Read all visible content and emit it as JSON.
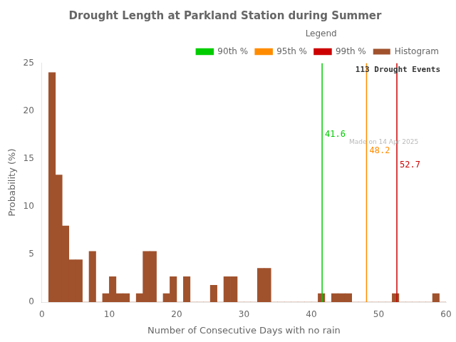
{
  "chart_data": {
    "type": "histogram",
    "title": "Drought Length at Parkland Station during Summer",
    "xlabel": "Number of Consecutive Days with no rain",
    "ylabel": "Probability (%)",
    "bins": [
      1,
      2,
      3,
      4,
      5,
      6,
      7,
      8,
      9,
      10,
      11,
      12,
      13,
      14,
      15,
      16,
      17,
      18,
      19,
      20,
      21,
      22,
      23,
      24,
      25,
      26,
      27,
      28,
      29,
      30,
      31,
      32,
      33,
      34,
      35,
      36,
      37,
      38,
      39,
      40,
      41,
      42,
      43,
      44,
      45,
      46,
      47,
      48,
      49,
      50,
      51,
      52,
      53,
      54,
      55,
      56,
      57,
      58,
      59,
      60,
      61
    ],
    "series": [
      {
        "name": "Histogram",
        "color": "#A0522D",
        "values": [
          24.0,
          13.3,
          7.96,
          4.42,
          4.42,
          0.0,
          5.31,
          0.0,
          0.88,
          2.65,
          0.88,
          0.88,
          0.0,
          0.88,
          5.31,
          5.31,
          0.0,
          0.88,
          2.65,
          0.0,
          2.65,
          0.0,
          0.0,
          0.0,
          1.77,
          0.0,
          2.65,
          2.65,
          0.0,
          0.0,
          0.0,
          3.54,
          3.54,
          0.0,
          0.0,
          0.0,
          0.0,
          0.0,
          0.0,
          0.0,
          0.88,
          0.0,
          0.88,
          0.88,
          0.88,
          0.0,
          0.0,
          0.0,
          0.0,
          0.0,
          0.0,
          0.88,
          0.0,
          0.0,
          0.0,
          0.0,
          0.0,
          0.88,
          0.0,
          0.0
        ]
      }
    ],
    "xlim": [
      0,
      60
    ],
    "ylim": [
      0,
      25
    ],
    "xticks": [
      0,
      10,
      20,
      30,
      40,
      50,
      60
    ],
    "yticks": [
      0,
      5,
      10,
      15,
      20,
      25
    ],
    "grid": false,
    "legend": "upper right",
    "legend_title": "Legend",
    "lines": [
      {
        "name": "90th %",
        "x": 41.6,
        "color": "#00CC00"
      },
      {
        "name": "95th %",
        "x": 48.2,
        "color": "#FF8C00"
      },
      {
        "name": "99th %",
        "x": 52.7,
        "color": "#CC0000"
      }
    ],
    "annotations": [
      {
        "text": "Made on 14 Apr 2025",
        "color": "#BBBBBB"
      },
      {
        "text": "113 Drought Events"
      }
    ]
  }
}
